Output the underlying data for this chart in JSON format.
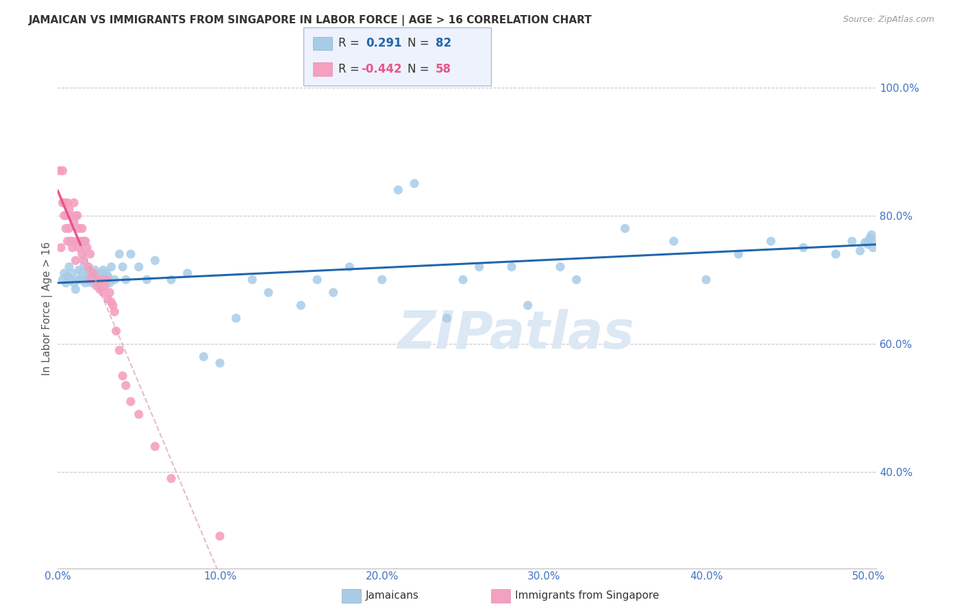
{
  "title": "JAMAICAN VS IMMIGRANTS FROM SINGAPORE IN LABOR FORCE | AGE > 16 CORRELATION CHART",
  "source": "Source: ZipAtlas.com",
  "ylabel": "In Labor Force | Age > 16",
  "x_ticks": [
    0.0,
    0.1,
    0.2,
    0.3,
    0.4,
    0.5
  ],
  "x_tick_labels": [
    "0.0%",
    "10.0%",
    "20.0%",
    "30.0%",
    "40.0%",
    "50.0%"
  ],
  "y_ticks": [
    0.4,
    0.6,
    0.8,
    1.0
  ],
  "y_tick_labels": [
    "40.0%",
    "60.0%",
    "80.0%",
    "100.0%"
  ],
  "xlim": [
    0.0,
    0.505
  ],
  "ylim": [
    0.25,
    1.06
  ],
  "blue_color": "#a8cce8",
  "blue_line_color": "#2166ac",
  "pink_color": "#f4a0bf",
  "pink_line_color": "#e8558a",
  "pink_dashed_color": "#d9a0b8",
  "grid_color": "#c8c8c8",
  "axis_color": "#4472C4",
  "watermark_color": "#dce8f4",
  "legend_box_color": "#eef2fc",
  "background_color": "#ffffff",
  "jamaicans_x": [
    0.003,
    0.004,
    0.005,
    0.006,
    0.007,
    0.008,
    0.009,
    0.01,
    0.011,
    0.012,
    0.013,
    0.014,
    0.015,
    0.016,
    0.016,
    0.017,
    0.018,
    0.018,
    0.019,
    0.02,
    0.02,
    0.021,
    0.022,
    0.022,
    0.023,
    0.024,
    0.025,
    0.025,
    0.026,
    0.027,
    0.028,
    0.028,
    0.029,
    0.03,
    0.031,
    0.032,
    0.033,
    0.035,
    0.038,
    0.04,
    0.042,
    0.045,
    0.05,
    0.055,
    0.06,
    0.07,
    0.08,
    0.09,
    0.1,
    0.11,
    0.12,
    0.13,
    0.15,
    0.16,
    0.17,
    0.18,
    0.2,
    0.21,
    0.22,
    0.24,
    0.25,
    0.26,
    0.28,
    0.29,
    0.31,
    0.32,
    0.35,
    0.38,
    0.4,
    0.42,
    0.44,
    0.46,
    0.48,
    0.49,
    0.495,
    0.498,
    0.5,
    0.5,
    0.501,
    0.502,
    0.503,
    0.504
  ],
  "jamaicans_y": [
    0.7,
    0.71,
    0.695,
    0.705,
    0.72,
    0.7,
    0.71,
    0.695,
    0.685,
    0.7,
    0.715,
    0.7,
    0.71,
    0.72,
    0.7,
    0.695,
    0.705,
    0.715,
    0.7,
    0.71,
    0.7,
    0.695,
    0.71,
    0.7,
    0.715,
    0.705,
    0.7,
    0.695,
    0.71,
    0.7,
    0.715,
    0.705,
    0.695,
    0.71,
    0.705,
    0.695,
    0.72,
    0.7,
    0.74,
    0.72,
    0.7,
    0.74,
    0.72,
    0.7,
    0.73,
    0.7,
    0.71,
    0.58,
    0.57,
    0.64,
    0.7,
    0.68,
    0.66,
    0.7,
    0.68,
    0.72,
    0.7,
    0.84,
    0.85,
    0.64,
    0.7,
    0.72,
    0.72,
    0.66,
    0.72,
    0.7,
    0.78,
    0.76,
    0.7,
    0.74,
    0.76,
    0.75,
    0.74,
    0.76,
    0.745,
    0.758,
    0.755,
    0.76,
    0.765,
    0.77,
    0.75,
    0.76
  ],
  "singapore_x": [
    0.001,
    0.002,
    0.003,
    0.003,
    0.004,
    0.004,
    0.005,
    0.005,
    0.006,
    0.006,
    0.007,
    0.007,
    0.008,
    0.008,
    0.009,
    0.009,
    0.01,
    0.01,
    0.011,
    0.011,
    0.012,
    0.012,
    0.013,
    0.013,
    0.014,
    0.015,
    0.015,
    0.016,
    0.016,
    0.017,
    0.018,
    0.019,
    0.02,
    0.02,
    0.021,
    0.022,
    0.023,
    0.024,
    0.025,
    0.026,
    0.027,
    0.028,
    0.029,
    0.03,
    0.031,
    0.032,
    0.033,
    0.034,
    0.035,
    0.036,
    0.038,
    0.04,
    0.042,
    0.045,
    0.05,
    0.06,
    0.07,
    0.1
  ],
  "singapore_y": [
    0.87,
    0.75,
    0.87,
    0.82,
    0.82,
    0.8,
    0.8,
    0.78,
    0.82,
    0.76,
    0.81,
    0.78,
    0.8,
    0.76,
    0.76,
    0.75,
    0.82,
    0.79,
    0.8,
    0.73,
    0.8,
    0.76,
    0.78,
    0.75,
    0.76,
    0.78,
    0.74,
    0.76,
    0.73,
    0.76,
    0.75,
    0.72,
    0.74,
    0.7,
    0.71,
    0.71,
    0.7,
    0.69,
    0.7,
    0.685,
    0.7,
    0.68,
    0.69,
    0.7,
    0.67,
    0.68,
    0.665,
    0.66,
    0.65,
    0.62,
    0.59,
    0.55,
    0.535,
    0.51,
    0.49,
    0.44,
    0.39,
    0.3
  ],
  "trendline_j_x0": 0.0,
  "trendline_j_x1": 0.505,
  "trendline_j_y0": 0.695,
  "trendline_j_y1": 0.755,
  "trendline_s_solid_x0": 0.0,
  "trendline_s_solid_x1": 0.014,
  "trendline_s_dashed_x0": 0.014,
  "trendline_s_dashed_x1": 0.175,
  "trendline_s_y0": 0.82,
  "trendline_s_y1": 0.385
}
